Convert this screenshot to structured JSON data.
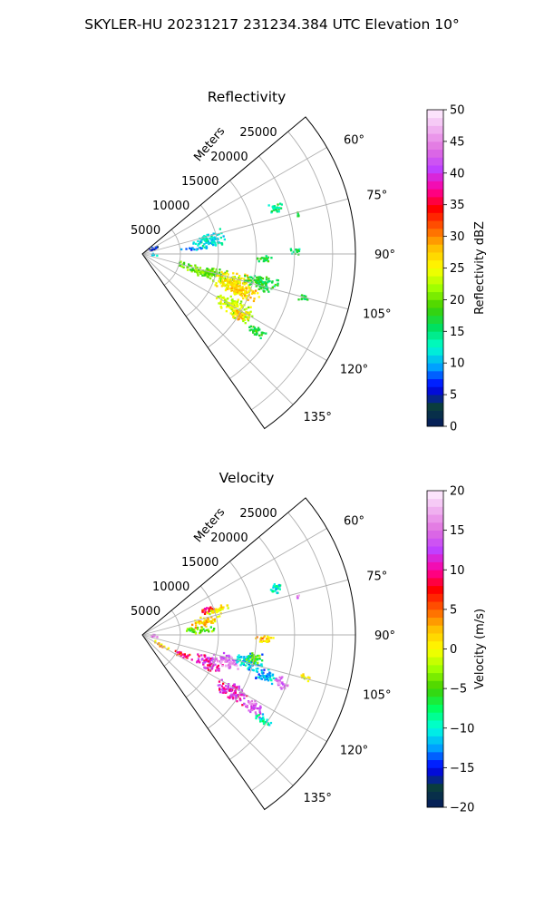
{
  "suptitle": "SKYLER-HU  20231217  231234.384 UTC Elevation 10°",
  "chart_data": [
    {
      "type": "heatmap",
      "projection": "polar-sector",
      "title": "Reflectivity",
      "range_axis_label": "Meters",
      "range_ticks": [
        5000,
        10000,
        15000,
        20000,
        25000
      ],
      "rmax": 28000,
      "azimuth_range_deg": [
        50,
        145
      ],
      "azimuth_ticks": [
        "60°",
        "75°",
        "90°",
        "105°",
        "120°",
        "135°"
      ],
      "azimuth_tick_values": [
        60,
        75,
        90,
        105,
        120,
        135
      ],
      "colorbar": {
        "label": "Reflectivity dBZ",
        "min": 0,
        "max": 50,
        "ticks": [
          "0",
          "5",
          "10",
          "15",
          "20",
          "25",
          "30",
          "35",
          "40",
          "45",
          "50"
        ],
        "stops": [
          "#051a5e",
          "#0a3d3d",
          "#0000ff",
          "#00a0ff",
          "#00ffd0",
          "#00e060",
          "#40d000",
          "#a0ff00",
          "#ffff00",
          "#ffc000",
          "#ff6000",
          "#ff0000",
          "#ff00a0",
          "#c040ff",
          "#e070e0",
          "#f0b0f0",
          "#fff0ff"
        ]
      },
      "cells": [
        {
          "az": 106,
          "r": 9000,
          "daz": 6,
          "dr": 9000,
          "v": 20
        },
        {
          "az": 108,
          "r": 12500,
          "daz": 7,
          "dr": 5000,
          "v": 26
        },
        {
          "az": 111,
          "r": 14000,
          "daz": 4,
          "dr": 5000,
          "v": 27
        },
        {
          "az": 104,
          "r": 16000,
          "daz": 4,
          "dr": 5000,
          "v": 17
        },
        {
          "az": 120,
          "r": 14000,
          "daz": 5,
          "dr": 6000,
          "v": 23
        },
        {
          "az": 122,
          "r": 15000,
          "daz": 3,
          "dr": 3000,
          "v": 27
        },
        {
          "az": 124,
          "r": 18000,
          "daz": 2,
          "dr": 3000,
          "v": 17
        },
        {
          "az": 78,
          "r": 9000,
          "daz": 7,
          "dr": 4500,
          "v": 12
        },
        {
          "az": 84,
          "r": 7000,
          "daz": 2,
          "dr": 4000,
          "v": 9
        },
        {
          "az": 71,
          "r": 18500,
          "daz": 2.5,
          "dr": 2000,
          "v": 15
        },
        {
          "az": 76,
          "r": 21000,
          "daz": 1.2,
          "dr": 800,
          "v": 16
        },
        {
          "az": 89,
          "r": 20000,
          "daz": 1.5,
          "dr": 1500,
          "v": 15
        },
        {
          "az": 92,
          "r": 16000,
          "daz": 2,
          "dr": 2500,
          "v": 17
        },
        {
          "az": 105,
          "r": 22000,
          "daz": 1.5,
          "dr": 1500,
          "v": 16
        },
        {
          "az": 64,
          "r": 1800,
          "daz": 14,
          "dr": 1500,
          "v": 6
        },
        {
          "az": 96,
          "r": 1500,
          "daz": 10,
          "dr": 1200,
          "v": 12
        }
      ]
    },
    {
      "type": "heatmap",
      "projection": "polar-sector",
      "title": "Velocity",
      "range_axis_label": "Meters",
      "range_ticks": [
        5000,
        10000,
        15000,
        20000,
        25000
      ],
      "rmax": 28000,
      "azimuth_range_deg": [
        50,
        145
      ],
      "azimuth_ticks": [
        "60°",
        "75°",
        "90°",
        "105°",
        "120°",
        "135°"
      ],
      "azimuth_tick_values": [
        60,
        75,
        90,
        105,
        120,
        135
      ],
      "colorbar": {
        "label": "Velocity (m/s)",
        "min": -20,
        "max": 20,
        "ticks": [
          "−20",
          "−15",
          "−10",
          "−5",
          "0",
          "5",
          "10",
          "15",
          "20"
        ],
        "stops": [
          "#051a5e",
          "#0a3d3d",
          "#0000ff",
          "#00a0ff",
          "#00ffe0",
          "#00ff60",
          "#40d000",
          "#a0ff00",
          "#ffff00",
          "#ffc000",
          "#ff6000",
          "#ff0000",
          "#ff00a0",
          "#c040ff",
          "#e070e0",
          "#f0b0f0",
          "#fff0ff"
        ]
      },
      "cells": [
        {
          "az": 118,
          "r": 3000,
          "daz": 5,
          "dr": 3000,
          "v": 2
        },
        {
          "az": 116,
          "r": 6000,
          "daz": 4,
          "dr": 3000,
          "v": 8
        },
        {
          "az": 113,
          "r": 9500,
          "daz": 6,
          "dr": 4000,
          "v": 11
        },
        {
          "az": 107,
          "r": 11500,
          "daz": 5,
          "dr": 4000,
          "v": 15
        },
        {
          "az": 104,
          "r": 14500,
          "daz": 5,
          "dr": 4000,
          "v": -11
        },
        {
          "az": 108,
          "r": 17000,
          "daz": 3,
          "dr": 3000,
          "v": -12
        },
        {
          "az": 109,
          "r": 19500,
          "daz": 2.5,
          "dr": 2500,
          "v": 15
        },
        {
          "az": 122,
          "r": 14000,
          "daz": 4.5,
          "dr": 5000,
          "v": 11
        },
        {
          "az": 123,
          "r": 17500,
          "daz": 3,
          "dr": 3000,
          "v": 14
        },
        {
          "az": 125,
          "r": 19500,
          "daz": 2,
          "dr": 2500,
          "v": -10
        },
        {
          "az": 78,
          "r": 8500,
          "daz": 5,
          "dr": 4000,
          "v": 2
        },
        {
          "az": 72,
          "r": 10500,
          "daz": 3,
          "dr": 4000,
          "v": 0
        },
        {
          "az": 69,
          "r": 9000,
          "daz": 2.5,
          "dr": 2500,
          "v": 8
        },
        {
          "az": 85,
          "r": 7500,
          "daz": 4,
          "dr": 4000,
          "v": -4
        },
        {
          "az": 71,
          "r": 18500,
          "daz": 2.5,
          "dr": 2000,
          "v": -10
        },
        {
          "az": 76,
          "r": 21000,
          "daz": 1.2,
          "dr": 800,
          "v": 15
        },
        {
          "az": 92,
          "r": 16000,
          "daz": 2,
          "dr": 2500,
          "v": 2
        },
        {
          "az": 102,
          "r": 15000,
          "daz": 3,
          "dr": 2500,
          "v": -4
        },
        {
          "az": 105,
          "r": 22000,
          "daz": 1.5,
          "dr": 1500,
          "v": -1
        },
        {
          "az": 96,
          "r": 1500,
          "daz": 10,
          "dr": 1200,
          "v": 14
        }
      ]
    }
  ]
}
